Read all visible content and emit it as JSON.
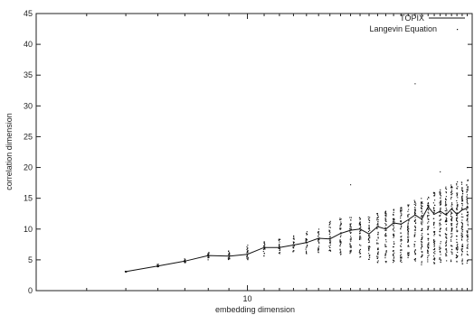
{
  "chart_data": {
    "type": "scatter",
    "title": "",
    "xlabel": "embedding dimension",
    "ylabel": "correlation dimension",
    "x_scale": "log",
    "xlim": [
      3,
      36
    ],
    "ylim": [
      0,
      45
    ],
    "x_ticks": [
      {
        "value": 10,
        "label": "10"
      }
    ],
    "y_ticks": [
      0,
      5,
      10,
      15,
      20,
      25,
      30,
      35,
      40,
      45
    ],
    "y_tick_labels": [
      "0",
      "5",
      "10",
      "15",
      "20",
      "25",
      "30",
      "35",
      "40",
      "45"
    ],
    "grid": false,
    "legend_position": "top-right",
    "series": [
      {
        "name": "TOPIX",
        "style": "line",
        "color": "#111111",
        "x": [
          5,
          6,
          7,
          8,
          9,
          10,
          11,
          12,
          13,
          14,
          15,
          16,
          17,
          18,
          19,
          20,
          21,
          22,
          23,
          24,
          25,
          26,
          27,
          28,
          29,
          30,
          31,
          32,
          33,
          34,
          35
        ],
        "y": [
          3.1,
          4.0,
          4.8,
          5.7,
          5.6,
          5.9,
          7.0,
          7.0,
          7.4,
          7.8,
          8.5,
          8.4,
          9.3,
          9.8,
          10.0,
          9.2,
          10.4,
          10.0,
          11.0,
          10.8,
          11.5,
          12.3,
          11.6,
          13.6,
          12.4,
          12.9,
          12.3,
          13.3,
          12.4,
          13.1,
          13.4
        ]
      },
      {
        "name": "Langevin Equation",
        "style": "points",
        "color": "#111111",
        "x": [
          5,
          6,
          7,
          8,
          9,
          10,
          11,
          12,
          13,
          14,
          15,
          16,
          17,
          18,
          19,
          20,
          21,
          22,
          23,
          24,
          25,
          26,
          27,
          28,
          29,
          30,
          31,
          32,
          33,
          34,
          35
        ],
        "y_min": [
          3.0,
          3.8,
          4.5,
          5.0,
          5.0,
          5.0,
          5.5,
          5.8,
          6.0,
          6.0,
          6.2,
          6.4,
          5.6,
          5.5,
          5.2,
          4.8,
          4.5,
          4.5,
          4.5,
          4.6,
          4.3,
          4.4,
          4.2,
          4.4,
          4.3,
          4.4,
          4.6,
          4.4,
          4.3,
          4.2,
          4.3
        ],
        "y_max": [
          3.2,
          4.3,
          5.2,
          6.3,
          6.6,
          7.6,
          8.0,
          8.6,
          9.0,
          9.7,
          10.4,
          11.4,
          11.8,
          12.0,
          12.0,
          12.2,
          12.6,
          13.0,
          13.3,
          13.6,
          14.0,
          14.7,
          15.0,
          15.6,
          16.0,
          16.4,
          17.0,
          17.4,
          17.8,
          18.0,
          18.2
        ],
        "outliers": [
          [
            18,
            17.2
          ],
          [
            26,
            33.6
          ],
          [
            30,
            19.3
          ],
          [
            35,
            20.0
          ]
        ]
      }
    ]
  }
}
